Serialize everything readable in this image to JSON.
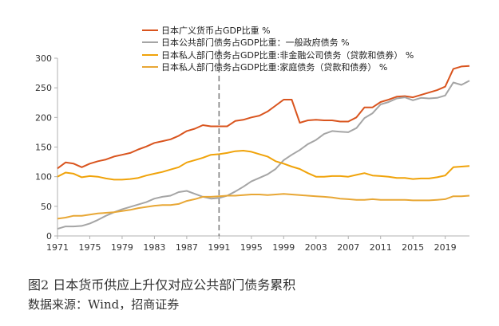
{
  "chart_data": {
    "type": "line",
    "title": "",
    "xlabel": "",
    "ylabel": "",
    "ylim": [
      0,
      300
    ],
    "yticks": [
      "0",
      "50",
      "100",
      "150",
      "200",
      "250",
      "300"
    ],
    "xlim": [
      1971,
      2022
    ],
    "xticks": [
      "1971",
      "1975",
      "1979",
      "1983",
      "1987",
      "1991",
      "1995",
      "1999",
      "2003",
      "2007",
      "2011",
      "2015",
      "2019"
    ],
    "x": [
      1971,
      1972,
      1973,
      1974,
      1975,
      1976,
      1977,
      1978,
      1979,
      1980,
      1981,
      1982,
      1983,
      1984,
      1985,
      1986,
      1987,
      1988,
      1989,
      1990,
      1991,
      1992,
      1993,
      1994,
      1995,
      1996,
      1997,
      1998,
      1999,
      2000,
      2001,
      2002,
      2003,
      2004,
      2005,
      2006,
      2007,
      2008,
      2009,
      2010,
      2011,
      2012,
      2013,
      2014,
      2015,
      2016,
      2017,
      2018,
      2019,
      2020,
      2021,
      2022
    ],
    "vline_x": 1991,
    "legend_position": "top",
    "grid": false,
    "series": [
      {
        "name": "日本广义货币占GDP比重 %",
        "color": "#d9541e",
        "values": [
          114,
          124,
          122,
          116,
          122,
          126,
          129,
          134,
          137,
          140,
          146,
          151,
          157,
          160,
          163,
          169,
          177,
          181,
          187,
          185,
          185,
          185,
          194,
          196,
          200,
          203,
          210,
          220,
          230,
          230,
          191,
          195,
          196,
          195,
          195,
          193,
          193,
          200,
          217,
          217,
          226,
          230,
          235,
          236,
          234,
          238,
          242,
          246,
          252,
          282,
          286,
          287
        ]
      },
      {
        "name": "日本公共部门债务占GDP比重：一般政府债务 %",
        "color": "#a5a5a5",
        "values": [
          12,
          16,
          16,
          17,
          21,
          27,
          34,
          40,
          45,
          49,
          53,
          57,
          63,
          66,
          68,
          74,
          76,
          71,
          66,
          63,
          64,
          68,
          75,
          83,
          92,
          98,
          104,
          113,
          128,
          137,
          145,
          155,
          162,
          172,
          177,
          176,
          175,
          182,
          199,
          207,
          222,
          226,
          232,
          234,
          229,
          233,
          232,
          233,
          237,
          259,
          255,
          262
        ]
      },
      {
        "name": "日本私人部门债务占GDP比重:非金融公司债务（贷款和债券） %",
        "color": "#f0a30a",
        "values": [
          100,
          107,
          105,
          99,
          101,
          100,
          97,
          95,
          95,
          96,
          98,
          102,
          105,
          108,
          112,
          116,
          124,
          128,
          132,
          137,
          138,
          140,
          143,
          144,
          142,
          138,
          134,
          126,
          122,
          117,
          113,
          106,
          100,
          100,
          101,
          101,
          100,
          103,
          106,
          102,
          101,
          100,
          98,
          98,
          96,
          97,
          97,
          99,
          102,
          116,
          117,
          118
        ]
      },
      {
        "name": "日本私人部门债务占GDP比重:家庭债务（贷款和债券） %",
        "color": "#e8a735",
        "values": [
          29,
          31,
          34,
          34,
          36,
          38,
          39,
          40,
          42,
          44,
          47,
          49,
          51,
          52,
          52,
          54,
          59,
          62,
          66,
          66,
          67,
          68,
          68,
          69,
          70,
          70,
          69,
          70,
          71,
          70,
          69,
          68,
          67,
          66,
          65,
          63,
          62,
          61,
          61,
          62,
          61,
          61,
          61,
          61,
          60,
          60,
          60,
          61,
          62,
          67,
          67,
          68
        ]
      }
    ]
  },
  "caption": {
    "title": "图2  日本货币供应上升仅对应公共部门债务累积",
    "source": "数据来源：Wind，招商证券"
  }
}
